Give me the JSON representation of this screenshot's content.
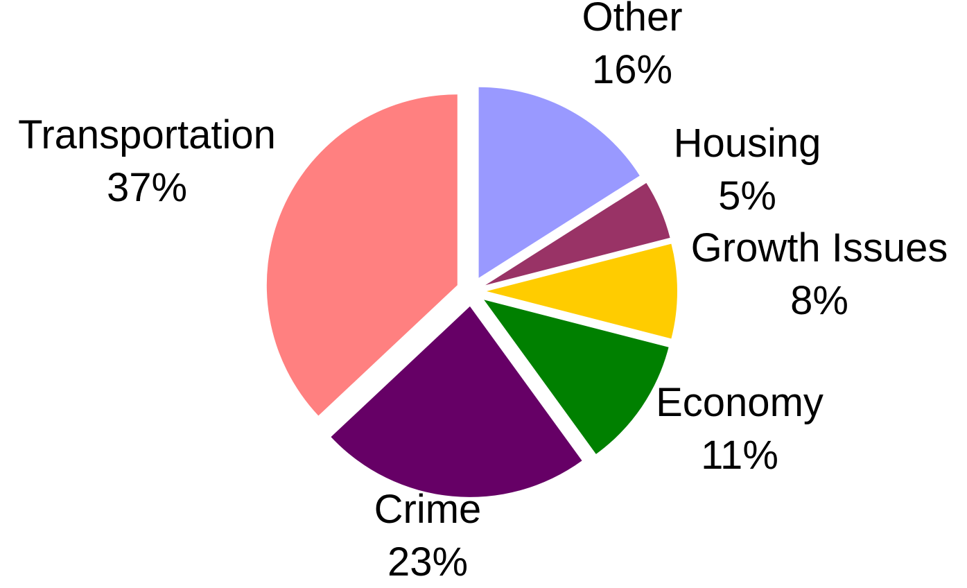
{
  "chart_data": {
    "type": "pie",
    "title": "",
    "start_angle_deg": 0,
    "direction": "clockwise",
    "slices": [
      {
        "name": "Other",
        "value": 16,
        "label": "16%",
        "color": "#9999ff"
      },
      {
        "name": "Housing",
        "value": 5,
        "label": "5%",
        "color": "#993366"
      },
      {
        "name": "Growth Issues",
        "value": 8,
        "label": "8%",
        "color": "#ffcc00"
      },
      {
        "name": "Economy",
        "value": 11,
        "label": "11%",
        "color": "#008000"
      },
      {
        "name": "Crime",
        "value": 23,
        "label": "23%",
        "color": "#660066"
      },
      {
        "name": "Transportation",
        "value": 37,
        "label": "37%",
        "color": "#ff8080"
      }
    ]
  }
}
